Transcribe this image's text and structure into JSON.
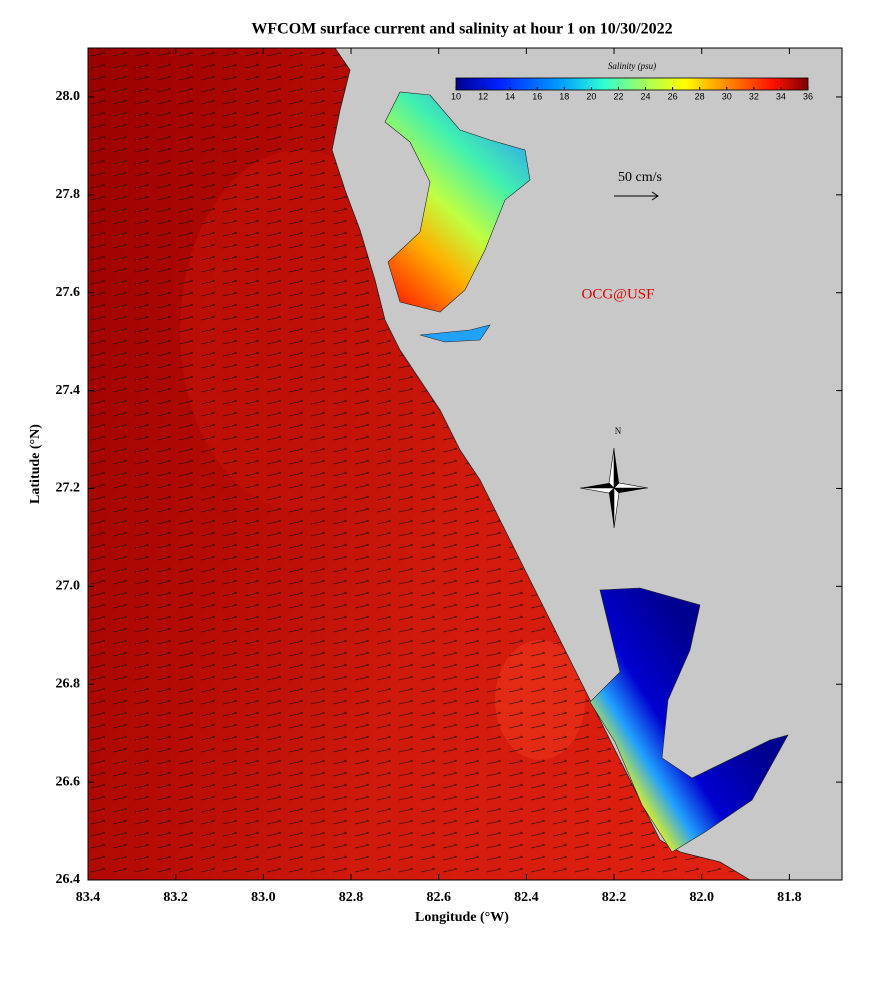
{
  "title": "WFCOM surface current and salinity at hour 1 on 10/30/2022",
  "x_axis": {
    "label": "Longitude (°W)",
    "lim": [
      83.4,
      81.68
    ],
    "ticks": [
      83.4,
      83.2,
      {
        "value": 83.0,
        "label": "83.0"
      },
      82.8,
      82.6,
      82.4,
      82.2,
      {
        "value": 82.0,
        "label": "82.0"
      },
      81.8
    ]
  },
  "y_axis": {
    "label": "Latitude (°N)",
    "lim": [
      26.4,
      28.1
    ],
    "ticks": [
      26.4,
      26.6,
      26.8,
      {
        "value": 27.0,
        "label": "27.0"
      },
      27.2,
      27.4,
      27.6,
      27.8,
      {
        "value": 28.0,
        "label": "28.0"
      }
    ]
  },
  "colorbar": {
    "label": "Salinity (psu)",
    "lim": [
      10,
      36
    ],
    "ticks": [
      10,
      12,
      14,
      16,
      18,
      20,
      22,
      24,
      26,
      28,
      30,
      32,
      34,
      36
    ]
  },
  "scale_label": "50 cm/s",
  "credit": "OCG@USF",
  "north_label": "N"
}
